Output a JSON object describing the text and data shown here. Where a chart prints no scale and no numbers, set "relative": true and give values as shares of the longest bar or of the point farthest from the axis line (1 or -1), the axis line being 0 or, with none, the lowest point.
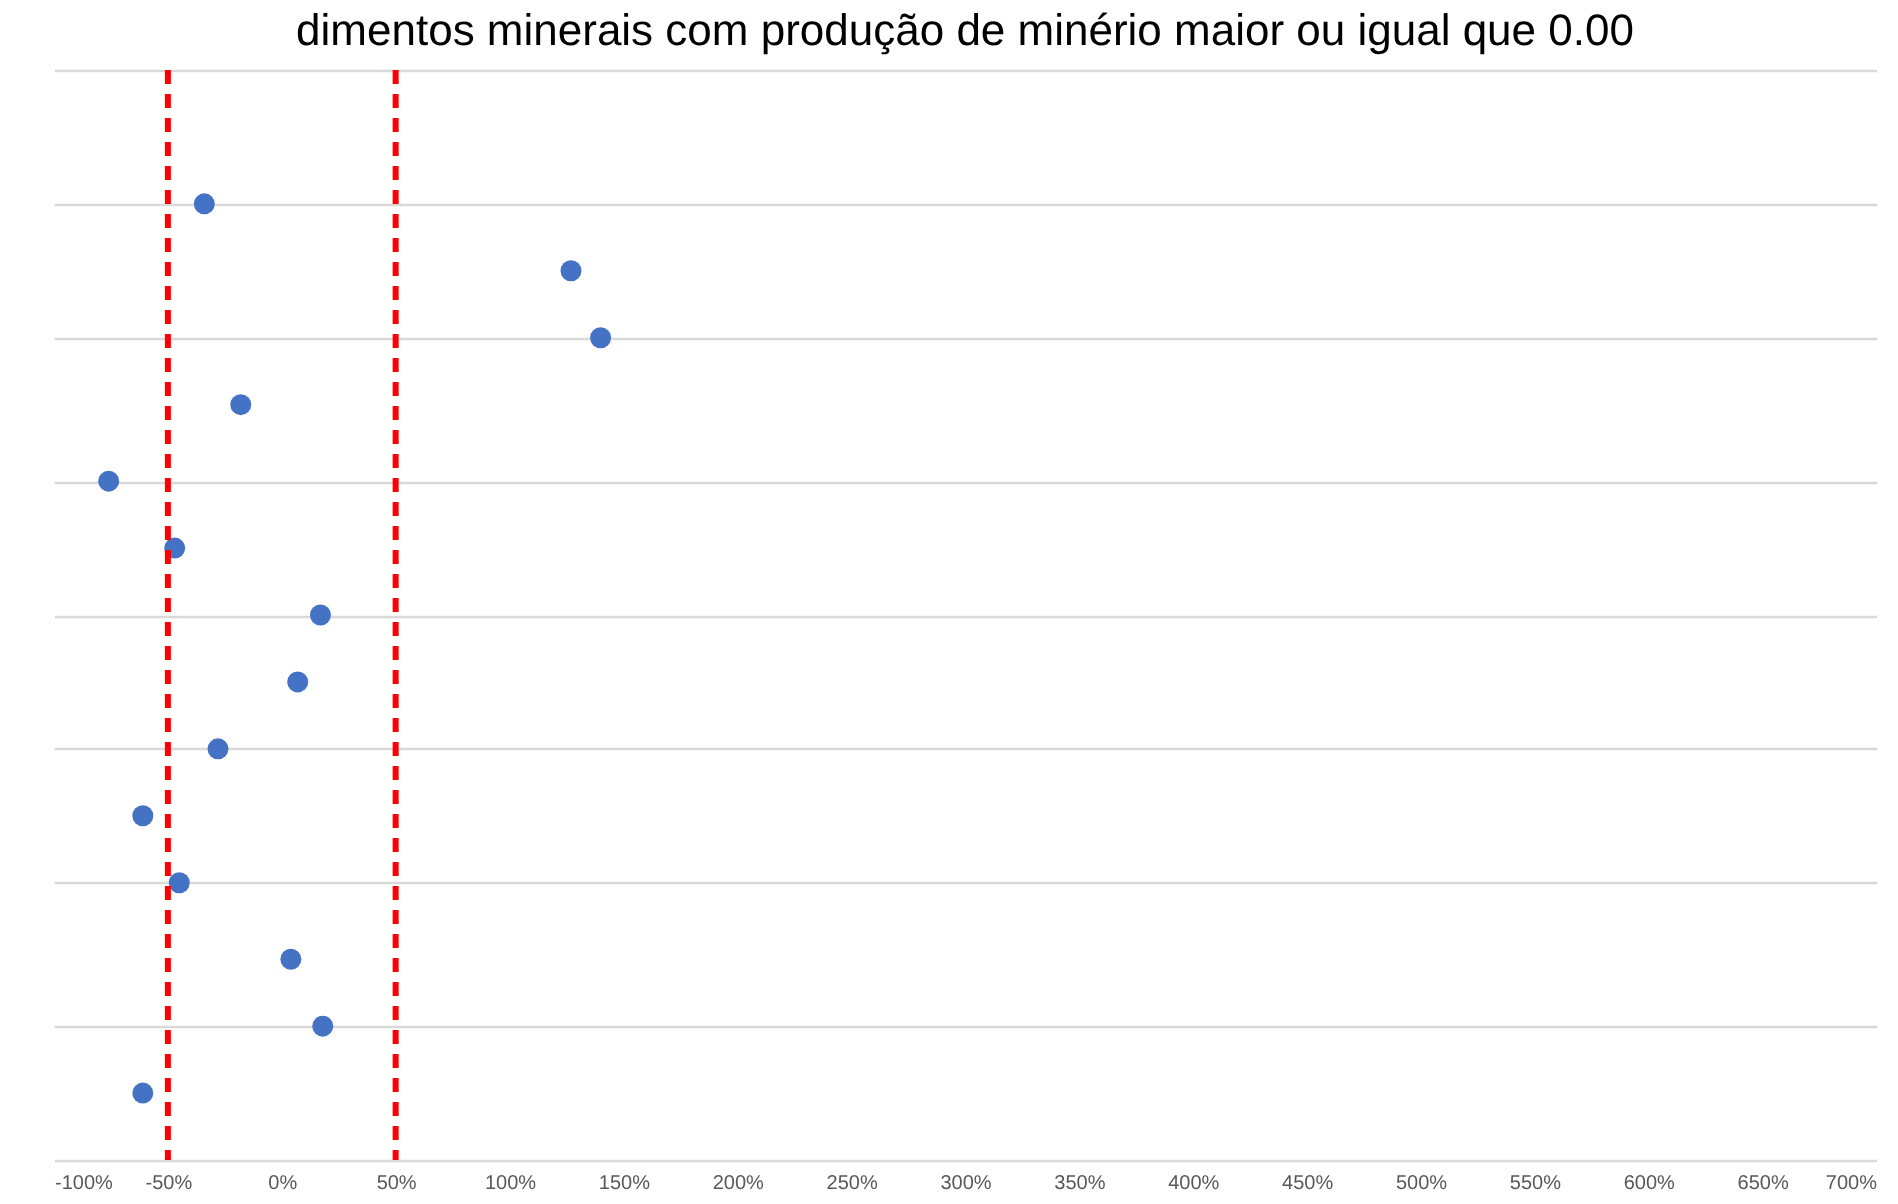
{
  "chart_data": {
    "type": "scatter",
    "title": "dimentos minerais com produção de minério maior ou igual que 0.00",
    "x": [
      -61,
      18,
      4,
      -45,
      -61,
      -28,
      7,
      17,
      -47,
      -76,
      -18,
      140,
      127,
      -34
    ],
    "series": [
      {
        "color": "#4472c4",
        "values": [
          0.07,
          0.14,
          0.21,
          0.29,
          0.36,
          0.43,
          0.5,
          0.57,
          0.64,
          0.71,
          0.79,
          0.86,
          0.93,
          1
        ]
      }
    ],
    "relative": true,
    "marker": "circle",
    "xlim": [
      -100,
      700
    ],
    "xticks": [
      {
        "value": -100,
        "label": "-100%"
      },
      {
        "value": -50,
        "label": "-50%"
      },
      {
        "value": 0,
        "label": "0%"
      },
      {
        "value": 50,
        "label": "50%"
      },
      {
        "value": 100,
        "label": "100%"
      },
      {
        "value": 150,
        "label": "150%"
      },
      {
        "value": 200,
        "label": "200%"
      },
      {
        "value": 250,
        "label": "250%"
      },
      {
        "value": 300,
        "label": "300%"
      },
      {
        "value": 350,
        "label": "350%"
      },
      {
        "value": 400,
        "label": "400%"
      },
      {
        "value": 450,
        "label": "450%"
      },
      {
        "value": 500,
        "label": "500%"
      },
      {
        "value": 550,
        "label": "550%"
      },
      {
        "value": 600,
        "label": "600%"
      },
      {
        "value": 650,
        "label": "650%"
      },
      {
        "value": 700,
        "label": "700%"
      }
    ],
    "grid": "y",
    "ref_lines": [
      {
        "axis": "x",
        "value": -50,
        "color": "#ff0000",
        "line_style": "dashed"
      },
      {
        "axis": "x",
        "value": 50,
        "color": "#ff0000",
        "line_style": "dashed"
      }
    ]
  }
}
